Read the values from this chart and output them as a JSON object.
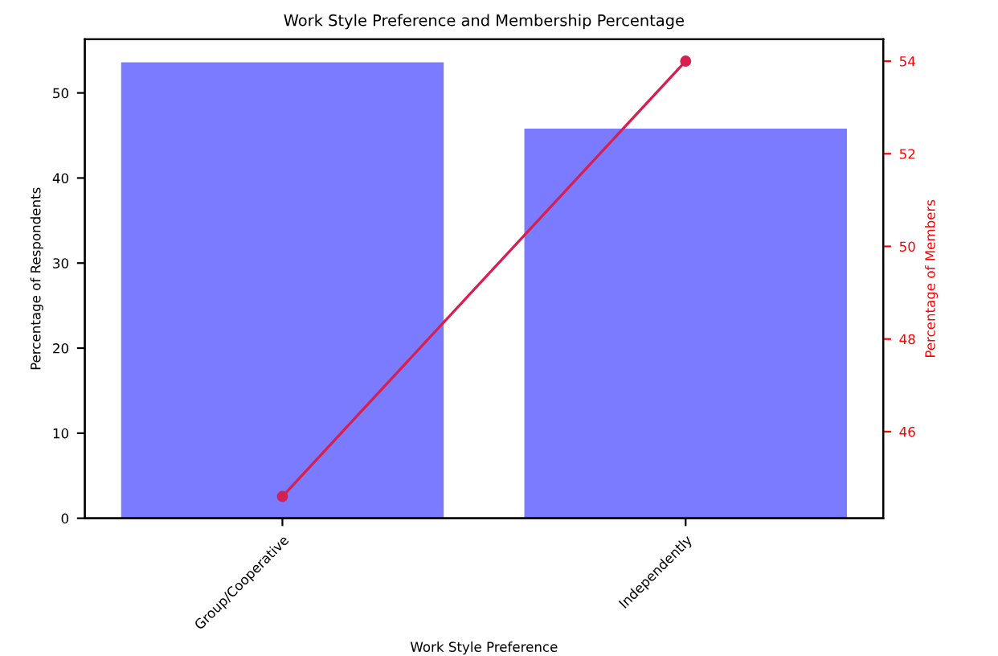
{
  "chart_data": {
    "type": "bar",
    "title": "Work Style Preference and Membership Percentage",
    "xlabel": "Work Style Preference",
    "ylabel": "Percentage of Respondents",
    "y2label": "Percentage of Members",
    "categories": [
      "Group/Cooperative",
      "Independently"
    ],
    "series": [
      {
        "color": "#7b7bff",
        "values": [
          53.6,
          45.8
        ]
      },
      {
        "type": "line",
        "axis": "y2",
        "color": "#d62050",
        "values": [
          44.6,
          54.0
        ]
      }
    ],
    "ylim": [
      0,
      56.3
    ],
    "yticks": [
      0,
      10,
      20,
      30,
      40,
      50
    ],
    "y2lim": [
      44.13,
      54.47
    ],
    "y2ticks": [
      46,
      48,
      50,
      52,
      54
    ],
    "marker": "circle",
    "grid": false,
    "legend": false
  }
}
